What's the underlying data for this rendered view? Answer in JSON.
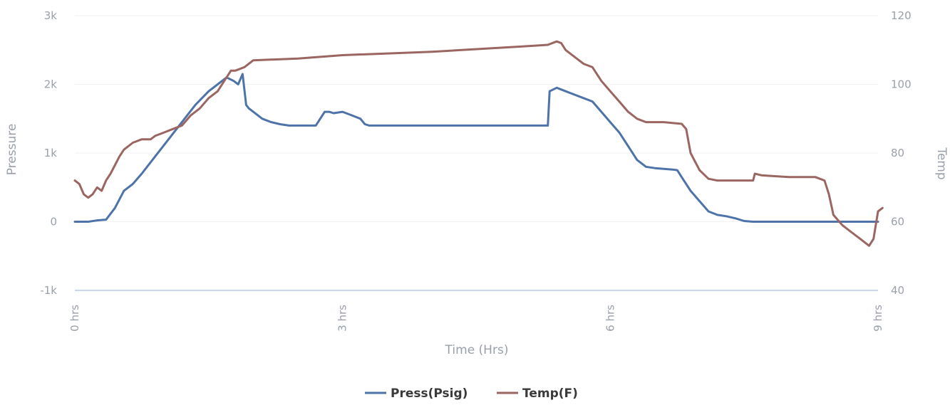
{
  "chart_data": {
    "type": "line",
    "xlabel": "Time (Hrs)",
    "ylabel_left": "Pressure",
    "ylabel_right": "Temp",
    "xlim": [
      0,
      9
    ],
    "ylim_left": [
      -1000,
      3000
    ],
    "ylim_right": [
      40,
      120
    ],
    "x_ticks": [
      {
        "value": 0,
        "label": "0 hrs"
      },
      {
        "value": 3,
        "label": "3 hrs"
      },
      {
        "value": 6,
        "label": "6 hrs"
      },
      {
        "value": 9,
        "label": "9 hrs"
      }
    ],
    "y_left_ticks": [
      {
        "value": -1000,
        "label": "-1k"
      },
      {
        "value": 0,
        "label": "0"
      },
      {
        "value": 1000,
        "label": "1k"
      },
      {
        "value": 2000,
        "label": "2k"
      },
      {
        "value": 3000,
        "label": "3k"
      }
    ],
    "y_right_ticks": [
      {
        "value": 40,
        "label": "40"
      },
      {
        "value": 60,
        "label": "60"
      },
      {
        "value": 80,
        "label": "80"
      },
      {
        "value": 100,
        "label": "100"
      },
      {
        "value": 120,
        "label": "120"
      }
    ],
    "grid": true,
    "legend_position": "bottom-center",
    "series": [
      {
        "name": "Press(Psig)",
        "axis": "left",
        "color": "#4e73a8",
        "x": [
          0,
          0.15,
          0.25,
          0.35,
          0.45,
          0.55,
          0.65,
          0.75,
          0.9,
          1.05,
          1.2,
          1.35,
          1.5,
          1.6,
          1.7,
          1.78,
          1.83,
          1.88,
          1.92,
          1.95,
          2.0,
          2.1,
          2.2,
          2.3,
          2.4,
          2.5,
          2.7,
          2.8,
          2.85,
          2.9,
          3.0,
          3.1,
          3.2,
          3.25,
          3.3,
          3.4,
          5.3,
          5.32,
          5.4,
          5.5,
          5.6,
          5.7,
          5.8,
          5.9,
          6.0,
          6.1,
          6.2,
          6.3,
          6.4,
          6.5,
          6.6,
          6.7,
          6.75,
          6.8,
          6.9,
          7.0,
          7.1,
          7.2,
          7.3,
          7.4,
          7.5,
          7.6,
          7.7,
          7.8,
          8.0,
          8.5,
          9.0
        ],
        "values": [
          0,
          0,
          20,
          30,
          200,
          450,
          550,
          700,
          950,
          1200,
          1450,
          1700,
          1900,
          2000,
          2100,
          2050,
          2000,
          2150,
          1700,
          1650,
          1600,
          1500,
          1450,
          1420,
          1400,
          1400,
          1400,
          1600,
          1600,
          1580,
          1600,
          1550,
          1500,
          1420,
          1400,
          1400,
          1400,
          1900,
          1950,
          1900,
          1850,
          1800,
          1750,
          1600,
          1450,
          1300,
          1100,
          900,
          800,
          780,
          770,
          760,
          750,
          650,
          450,
          300,
          150,
          100,
          80,
          50,
          10,
          0,
          0,
          0,
          0,
          0,
          0
        ]
      },
      {
        "name": "Temp(F)",
        "axis": "right",
        "color": "#9b6661",
        "x": [
          0,
          0.05,
          0.1,
          0.15,
          0.2,
          0.25,
          0.3,
          0.35,
          0.4,
          0.5,
          0.55,
          0.65,
          0.75,
          0.85,
          0.9,
          1.0,
          1.1,
          1.2,
          1.3,
          1.4,
          1.5,
          1.6,
          1.65,
          1.75,
          1.8,
          1.9,
          2.0,
          2.5,
          3.0,
          4.0,
          5.0,
          5.3,
          5.4,
          5.45,
          5.5,
          5.6,
          5.7,
          5.8,
          5.9,
          6.0,
          6.1,
          6.2,
          6.3,
          6.4,
          6.6,
          6.8,
          6.85,
          6.9,
          7.0,
          7.1,
          7.2,
          7.4,
          7.5,
          7.6,
          7.62,
          7.7,
          8.0,
          8.3,
          8.4,
          8.45,
          8.5,
          8.6,
          8.7,
          8.8,
          8.9,
          8.95,
          9.0,
          9.05
        ],
        "values": [
          72,
          71,
          68,
          67,
          68,
          70,
          69,
          72,
          74,
          79,
          81,
          83,
          84,
          84,
          85,
          86,
          87,
          88,
          91,
          93,
          96,
          98,
          100,
          104,
          104,
          105,
          107,
          107.5,
          108.5,
          109.5,
          111,
          111.5,
          112.5,
          112,
          110,
          108,
          106,
          105,
          101,
          98,
          95,
          92,
          90,
          89,
          89,
          88.5,
          87,
          80,
          75,
          72.5,
          72,
          72,
          72,
          72,
          74,
          73.5,
          73,
          73,
          72,
          68,
          62,
          59,
          57,
          55,
          53,
          55,
          63,
          64
        ]
      }
    ]
  }
}
